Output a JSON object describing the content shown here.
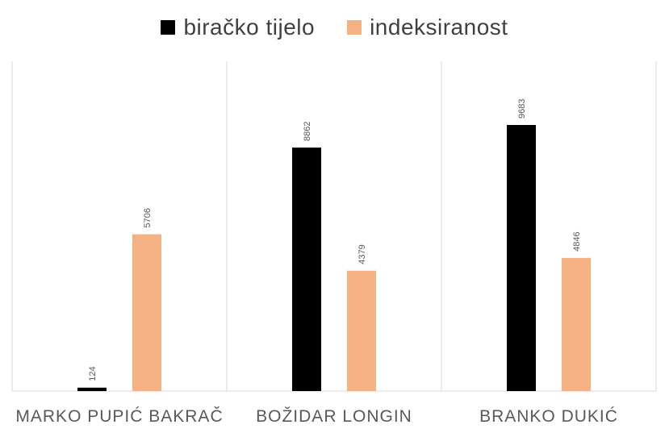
{
  "chart_data": {
    "type": "bar",
    "categories": [
      "MARKO PUPIĆ BAKRAČ",
      "BOŽIDAR LONGIN",
      "BRANKO DUKIĆ"
    ],
    "series": [
      {
        "name": "biračko tijelo",
        "values": [
          124,
          8862,
          9683
        ],
        "color": "#000000"
      },
      {
        "name": "indeksiranost",
        "values": [
          5706,
          4379,
          4846
        ],
        "color": "#F4B183"
      }
    ],
    "ylim": [
      0,
      12000
    ],
    "grid": "vertical category separators",
    "legend_position": "top",
    "data_labels": true
  }
}
